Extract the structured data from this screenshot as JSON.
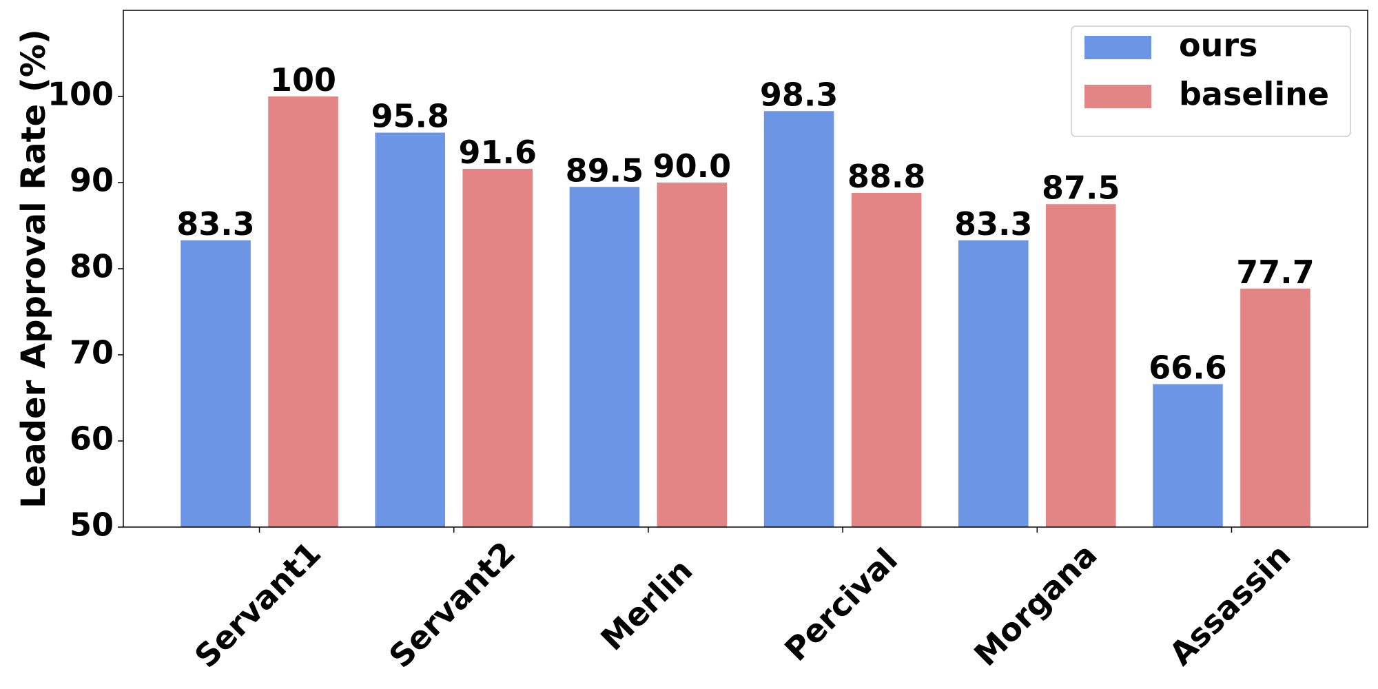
{
  "chart_data": {
    "type": "bar",
    "y_label": "Leader Approval Rate (%)",
    "categories": [
      "Servant1",
      "Servant2",
      "Merlin",
      "Percival",
      "Morgana",
      "Assassin"
    ],
    "series": [
      {
        "name": "ours",
        "color": "#6d95e6",
        "values": [
          83.3,
          95.8,
          89.5,
          98.3,
          83.3,
          66.6
        ],
        "value_labels": [
          "83.3",
          "95.8",
          "89.5",
          "98.3",
          "83.3",
          "66.6"
        ]
      },
      {
        "name": "baseline",
        "color": "#e38585",
        "values": [
          100,
          91.6,
          90.0,
          88.8,
          87.5,
          77.7
        ],
        "value_labels": [
          "100",
          "91.6",
          "90.0",
          "88.8",
          "87.5",
          "77.7"
        ]
      }
    ],
    "ylim": [
      50,
      110
    ],
    "yticks": [
      50,
      60,
      70,
      80,
      90,
      100
    ],
    "grid": false,
    "legend": "upper right"
  }
}
